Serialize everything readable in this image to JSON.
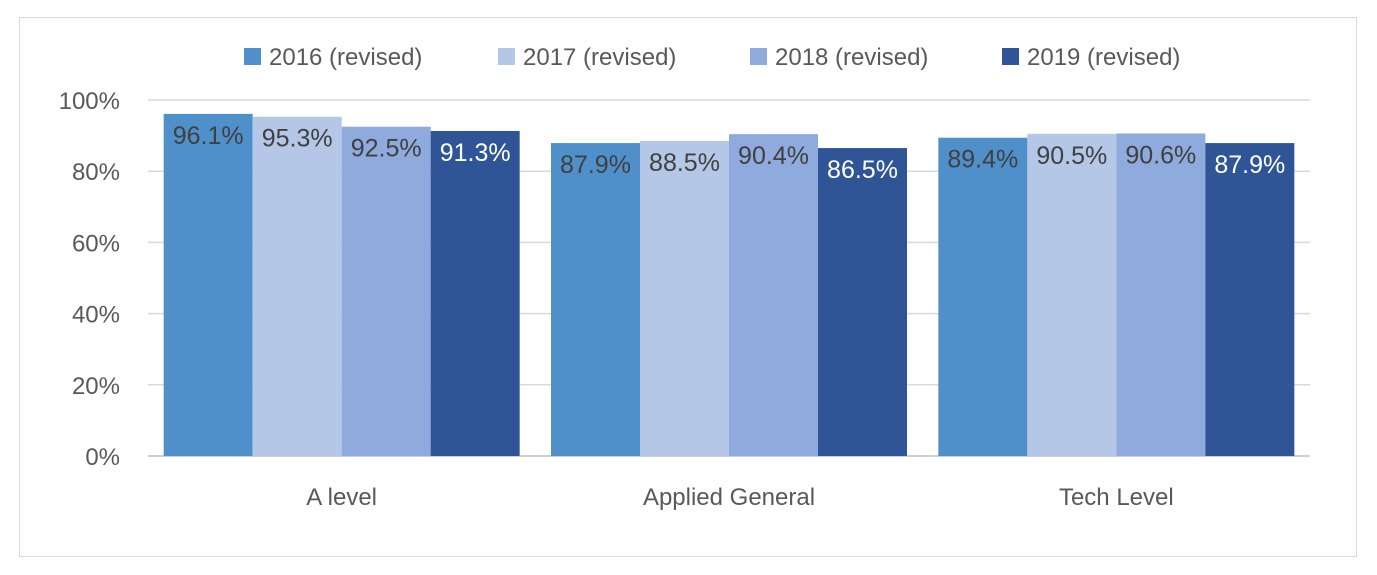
{
  "chart_data": {
    "type": "bar",
    "categories": [
      "A level",
      "Applied General",
      "Tech Level"
    ],
    "series": [
      {
        "name": "2016 (revised)",
        "values": [
          96.1,
          87.9,
          89.4
        ],
        "labels": [
          "96.1%",
          "87.9%",
          "89.4%"
        ],
        "color": "#4f8fca"
      },
      {
        "name": "2017 (revised)",
        "values": [
          95.3,
          88.5,
          90.5
        ],
        "labels": [
          "95.3%",
          "88.5%",
          "90.5%"
        ],
        "color": "#b4c7e7"
      },
      {
        "name": "2018 (revised)",
        "values": [
          92.5,
          90.4,
          90.6
        ],
        "labels": [
          "92.5%",
          "90.4%",
          "90.6%"
        ],
        "color": "#8faadc"
      },
      {
        "name": "2019 (revised)",
        "values": [
          91.3,
          86.5,
          87.9
        ],
        "labels": [
          "91.3%",
          "86.5%",
          "87.9%"
        ],
        "color": "#2f5597"
      }
    ],
    "yticks": [
      "0%",
      "20%",
      "40%",
      "60%",
      "80%",
      "100%"
    ],
    "ylim": [
      0,
      100
    ],
    "grid": true,
    "legend": "top",
    "title": "",
    "xlabel": "",
    "ylabel": ""
  }
}
